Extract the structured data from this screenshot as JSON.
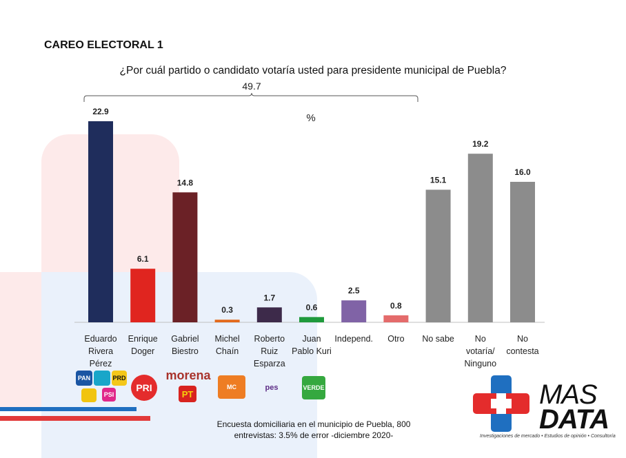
{
  "heading": "CAREO ELECTORAL 1",
  "chart_data": {
    "type": "bar",
    "title": "¿Por cuál partido o candidato votaría usted para presidente municipal de Puebla?",
    "ylabel": "%",
    "ylim": [
      0,
      25
    ],
    "grid": false,
    "bracket_total": "49.7",
    "categories": [
      [
        "Eduardo",
        "Rivera",
        "Pérez"
      ],
      [
        "Enrique",
        "Doger"
      ],
      [
        "Gabriel",
        "Biestro"
      ],
      [
        "Michel",
        "Chaín"
      ],
      [
        "Roberto",
        "Ruiz",
        "Esparza"
      ],
      [
        "Juan",
        "Pablo Kuri"
      ],
      [
        "Independ."
      ],
      [
        "Otro"
      ],
      [
        "No sabe"
      ],
      [
        "No",
        "votaría/",
        "Ninguno"
      ],
      [
        "No",
        "contesta"
      ]
    ],
    "values": [
      22.9,
      6.1,
      14.8,
      0.3,
      1.7,
      0.6,
      2.5,
      0.8,
      15.1,
      19.2,
      16.0
    ],
    "value_labels": [
      "22.9",
      "6.1",
      "14.8",
      "0.3",
      "1.7",
      "0.6",
      "2.5",
      "0.8",
      "15.1",
      "19.2",
      "16.0"
    ],
    "colors": [
      "#1f2d5c",
      "#e0251f",
      "#6b2126",
      "#e36a1c",
      "#3d2a4a",
      "#1f9a3c",
      "#8063a6",
      "#e46b6b",
      "#8c8c8c",
      "#8c8c8c",
      "#8c8c8c"
    ]
  },
  "party_logos": [
    "PAN",
    "PRD",
    "PSI",
    "PRI",
    "morena",
    "PT",
    "MC",
    "pes",
    "VERDE"
  ],
  "footer_note": [
    "Encuesta domiciliaria en el municipio de Puebla, 800",
    "entrevistas: 3.5% de error -diciembre 2020-"
  ],
  "brand": {
    "name_1": "MAS",
    "name_2": "DATA",
    "tagline": "Investigaciones de mercado • Estudios de opinión • Consultoría"
  }
}
